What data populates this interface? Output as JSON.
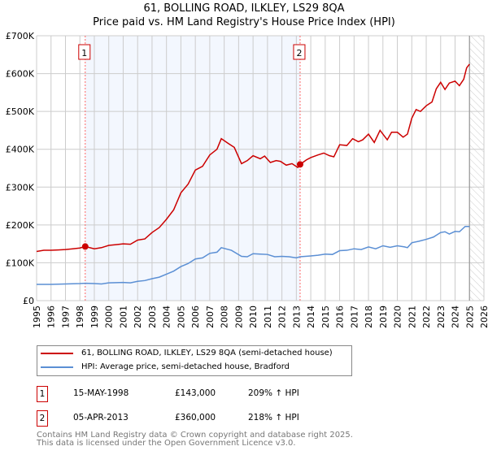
{
  "chart_data": {
    "type": "line",
    "title": "61, BOLLING ROAD, ILKLEY, LS29 8QA",
    "subtitle": "Price paid vs. HM Land Registry's House Price Index (HPI)",
    "xlim": [
      1995,
      2026
    ],
    "ylim": [
      0,
      700000
    ],
    "x_ticks": [
      "1995",
      "1996",
      "1997",
      "1998",
      "1999",
      "2000",
      "2001",
      "2002",
      "2003",
      "2004",
      "2005",
      "2006",
      "2007",
      "2008",
      "2009",
      "2010",
      "2011",
      "2012",
      "2013",
      "2014",
      "2015",
      "2016",
      "2017",
      "2018",
      "2019",
      "2020",
      "2021",
      "2022",
      "2023",
      "2024",
      "2025",
      "2026"
    ],
    "y_ticks": [
      {
        "v": 0,
        "label": "£0"
      },
      {
        "v": 100000,
        "label": "£100K"
      },
      {
        "v": 200000,
        "label": "£200K"
      },
      {
        "v": 300000,
        "label": "£300K"
      },
      {
        "v": 400000,
        "label": "£400K"
      },
      {
        "v": 500000,
        "label": "£500K"
      },
      {
        "v": 600000,
        "label": "£600K"
      },
      {
        "v": 700000,
        "label": "£700K"
      }
    ],
    "grid": true,
    "shaded_period": [
      1998.37,
      2013.26
    ],
    "forecast_hatch_from": 2025,
    "series": [
      {
        "name": "61, BOLLING ROAD, ILKLEY, LS29 8QA (semi-detached house)",
        "color": "#cc0000",
        "x": [
          1995,
          1995.5,
          1996,
          1996.5,
          1997,
          1997.5,
          1998,
          1998.37,
          1999,
          1999.5,
          2000,
          2000.5,
          2001,
          2001.5,
          2002,
          2002.5,
          2003,
          2003.5,
          2004,
          2004.5,
          2005,
          2005.5,
          2006,
          2006.5,
          2007,
          2007.5,
          2007.8,
          2008.3,
          2008.7,
          2009.2,
          2009.6,
          2010,
          2010.5,
          2010.8,
          2011.2,
          2011.6,
          2011.9,
          2012.3,
          2012.7,
          2013.1,
          2013.26,
          2013.7,
          2014,
          2014.5,
          2014.9,
          2015.3,
          2015.6,
          2016,
          2016.5,
          2016.9,
          2017.3,
          2017.6,
          2018,
          2018.4,
          2018.8,
          2019.3,
          2019.6,
          2020,
          2020.4,
          2020.7,
          2021,
          2021.3,
          2021.6,
          2022,
          2022.4,
          2022.7,
          2023,
          2023.3,
          2023.6,
          2024,
          2024.3,
          2024.6,
          2024.8,
          2025
        ],
        "y": [
          130000,
          133000,
          133000,
          134000,
          135000,
          137000,
          139000,
          143000,
          137000,
          140000,
          146000,
          148000,
          150000,
          149000,
          160000,
          163000,
          180000,
          193000,
          215000,
          240000,
          285000,
          308000,
          345000,
          355000,
          385000,
          400000,
          428000,
          415000,
          405000,
          362000,
          370000,
          383000,
          375000,
          382000,
          365000,
          370000,
          368000,
          358000,
          362000,
          352000,
          360000,
          372000,
          378000,
          385000,
          390000,
          383000,
          380000,
          412000,
          410000,
          428000,
          420000,
          425000,
          440000,
          418000,
          450000,
          425000,
          445000,
          445000,
          432000,
          440000,
          482000,
          505000,
          500000,
          515000,
          525000,
          560000,
          577000,
          558000,
          575000,
          580000,
          568000,
          585000,
          615000,
          625000
        ]
      },
      {
        "name": "HPI: Average price, semi-detached house, Bradford",
        "color": "#5b8fd4",
        "x": [
          1995,
          1996,
          1997,
          1998,
          1998.37,
          1999,
          1999.5,
          2000,
          2001,
          2001.5,
          2002,
          2002.5,
          2003,
          2003.5,
          2004,
          2004.5,
          2005,
          2005.5,
          2006,
          2006.5,
          2007,
          2007.5,
          2007.8,
          2008.5,
          2009.2,
          2009.6,
          2010,
          2010.5,
          2011,
          2011.5,
          2012,
          2012.5,
          2013,
          2013.26,
          2014,
          2014.5,
          2015,
          2015.5,
          2016,
          2016.5,
          2017,
          2017.5,
          2018,
          2018.5,
          2019,
          2019.5,
          2020,
          2020.5,
          2020.7,
          2021,
          2021.5,
          2022,
          2022.5,
          2023,
          2023.3,
          2023.6,
          2024,
          2024.3,
          2024.7,
          2025
        ],
        "y": [
          43000,
          43000,
          44000,
          45000,
          46000,
          45000,
          44000,
          47000,
          48000,
          47000,
          51000,
          53000,
          58000,
          62000,
          70000,
          78000,
          90000,
          98000,
          110000,
          113000,
          125000,
          128000,
          140000,
          133000,
          117000,
          116000,
          124000,
          123000,
          122000,
          116000,
          117000,
          116000,
          113000,
          116000,
          118000,
          120000,
          123000,
          122000,
          132000,
          133000,
          137000,
          135000,
          142000,
          137000,
          145000,
          141000,
          145000,
          142000,
          140000,
          153000,
          157000,
          162000,
          168000,
          180000,
          182000,
          176000,
          183000,
          182000,
          196000,
          196000
        ]
      }
    ],
    "sales": [
      {
        "num": "1",
        "x": 1998.37,
        "price": 143000
      },
      {
        "num": "2",
        "x": 2013.26,
        "price": 360000
      }
    ]
  },
  "legend": {
    "items": [
      "61, BOLLING ROAD, ILKLEY, LS29 8QA (semi-detached house)",
      "HPI: Average price, semi-detached house, Bradford"
    ]
  },
  "transactions": [
    {
      "num": "1",
      "date": "15-MAY-1998",
      "price": "£143,000",
      "hpi": "209% ↑ HPI"
    },
    {
      "num": "2",
      "date": "05-APR-2013",
      "price": "£360,000",
      "hpi": "218% ↑ HPI"
    }
  ],
  "footer": {
    "line1": "Contains HM Land Registry data © Crown copyright and database right 2025.",
    "line2": "This data is licensed under the Open Government Licence v3.0."
  }
}
